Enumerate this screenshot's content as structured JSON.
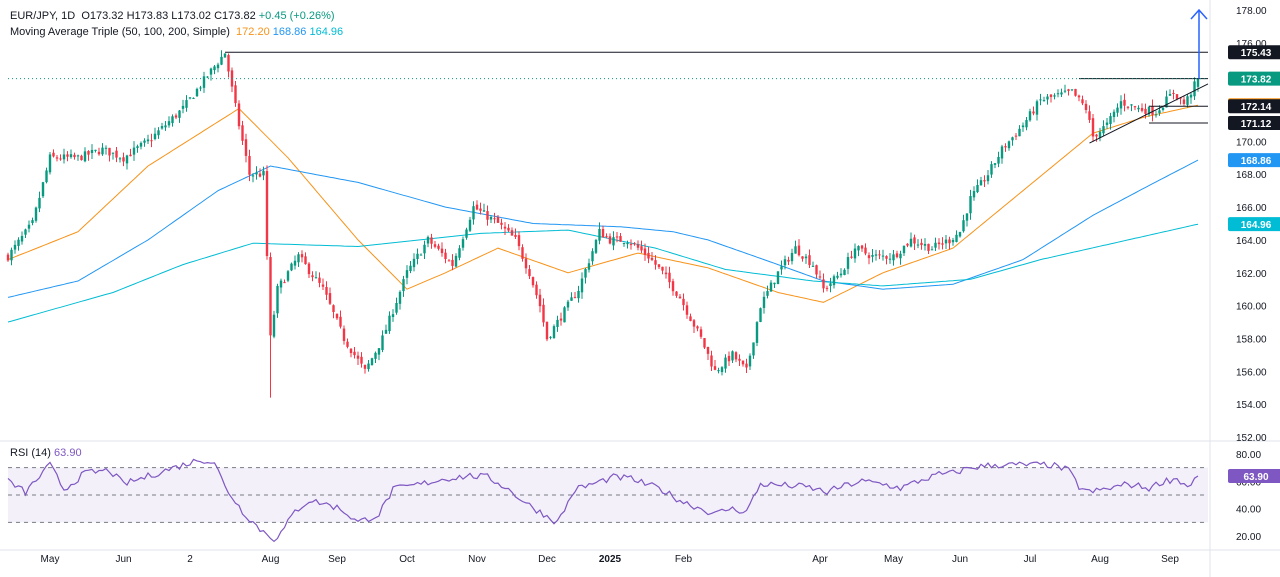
{
  "header": {
    "symbol_line": "EUR/JPY, 1D",
    "open": "O173.32",
    "high": "H173.83",
    "low": "L173.02",
    "close": "C173.82",
    "change": "+0.45 (+0.26%)",
    "ma_title": "Moving Average Triple (50, 100, 200, Simple)",
    "ma50_value": "172.20",
    "ma100_value": "168.86",
    "ma200_value": "164.96"
  },
  "rsi_header": {
    "label": "RSI (14)",
    "value": "63.90"
  },
  "colors": {
    "up": "#089981",
    "down": "#f23645",
    "ma50": "#f7931a",
    "ma100": "#2196f3",
    "ma200": "#00bcd4",
    "rsi": "#7e57c2",
    "arrow": "#2962ff",
    "close_badge": "#089981",
    "ma50_badge": "#f7931a",
    "ma100_badge": "#2196f3",
    "ma200_badge": "#00bcd4",
    "black_badge": "#131722"
  },
  "chart_data": {
    "type": "candlestick",
    "title": "EUR/JPY, 1D",
    "price_axis": {
      "range": [
        152,
        178
      ],
      "ticks": [
        152,
        154,
        156,
        158,
        160,
        162,
        164,
        166,
        168,
        170,
        172,
        174,
        176,
        178
      ]
    },
    "rsi_axis": {
      "range": [
        12,
        88
      ],
      "ticks": [
        20,
        40,
        60,
        80
      ],
      "levels": [
        70,
        50,
        30
      ]
    },
    "time_axis": {
      "labels": [
        "May",
        "Jun",
        "2",
        "Aug",
        "Sep",
        "Oct",
        "Nov",
        "Dec",
        "2025",
        "Feb",
        "Apr",
        "May",
        "Jun",
        "Jul",
        "Aug",
        "Sep"
      ],
      "positions": [
        12,
        33,
        52,
        75,
        94,
        114,
        134,
        154,
        172,
        193,
        232,
        253,
        272,
        292,
        312,
        332
      ]
    },
    "anchors": [
      [
        0,
        163
      ],
      [
        7,
        165
      ],
      [
        12,
        169
      ],
      [
        20,
        169
      ],
      [
        27,
        169.5
      ],
      [
        33,
        169
      ],
      [
        40,
        170
      ],
      [
        50,
        172
      ],
      [
        57,
        174
      ],
      [
        62,
        175.4
      ],
      [
        66,
        171
      ],
      [
        69,
        168
      ],
      [
        73,
        168
      ],
      [
        75,
        158
      ],
      [
        77,
        161
      ],
      [
        83,
        163
      ],
      [
        90,
        161
      ],
      [
        96,
        158
      ],
      [
        102,
        156
      ],
      [
        107,
        158
      ],
      [
        114,
        162
      ],
      [
        120,
        164
      ],
      [
        127,
        162.5
      ],
      [
        133,
        166
      ],
      [
        140,
        165
      ],
      [
        145,
        164
      ],
      [
        149,
        162
      ],
      [
        152,
        160
      ],
      [
        154,
        158
      ],
      [
        157,
        159
      ],
      [
        163,
        161
      ],
      [
        169,
        164.5
      ],
      [
        172,
        164
      ],
      [
        177,
        164
      ],
      [
        183,
        163
      ],
      [
        187,
        162
      ],
      [
        192,
        160.5
      ],
      [
        198,
        158
      ],
      [
        202,
        156
      ],
      [
        207,
        157
      ],
      [
        211,
        156
      ],
      [
        215,
        160
      ],
      [
        220,
        162
      ],
      [
        225,
        163.5
      ],
      [
        230,
        162.5
      ],
      [
        233,
        161
      ],
      [
        238,
        162
      ],
      [
        242,
        163.5
      ],
      [
        247,
        163
      ],
      [
        253,
        163
      ],
      [
        258,
        164
      ],
      [
        264,
        163.5
      ],
      [
        269,
        164
      ],
      [
        272,
        164.5
      ],
      [
        275,
        166.5
      ],
      [
        280,
        168
      ],
      [
        284,
        169.5
      ],
      [
        290,
        171
      ],
      [
        295,
        172.5
      ],
      [
        304,
        173
      ],
      [
        308,
        172
      ],
      [
        310,
        170.3
      ],
      [
        314,
        171
      ],
      [
        318,
        172.4
      ],
      [
        323,
        172
      ],
      [
        328,
        171.8
      ],
      [
        333,
        173
      ],
      [
        336,
        172.3
      ],
      [
        337,
        172.6
      ],
      [
        340,
        173.82
      ]
    ],
    "moving_averages": [
      {
        "name": "MA 50",
        "value": 172.2,
        "anchors": [
          [
            0,
            162.8
          ],
          [
            20,
            164.5
          ],
          [
            40,
            168.5
          ],
          [
            66,
            172
          ],
          [
            80,
            169
          ],
          [
            100,
            164
          ],
          [
            114,
            161
          ],
          [
            125,
            162
          ],
          [
            140,
            163.5
          ],
          [
            160,
            162
          ],
          [
            180,
            163.2
          ],
          [
            200,
            162.3
          ],
          [
            220,
            160.8
          ],
          [
            233,
            160.2
          ],
          [
            250,
            162
          ],
          [
            270,
            163.5
          ],
          [
            290,
            167
          ],
          [
            310,
            170.5
          ],
          [
            325,
            171.5
          ],
          [
            340,
            172.2
          ]
        ]
      },
      {
        "name": "MA 100",
        "value": 168.86,
        "anchors": [
          [
            0,
            160.5
          ],
          [
            20,
            161.5
          ],
          [
            40,
            164
          ],
          [
            60,
            167
          ],
          [
            75,
            168.5
          ],
          [
            100,
            167.5
          ],
          [
            125,
            166
          ],
          [
            150,
            165
          ],
          [
            175,
            164.8
          ],
          [
            190,
            164.5
          ],
          [
            200,
            164
          ],
          [
            220,
            162.5
          ],
          [
            233,
            161.5
          ],
          [
            250,
            161
          ],
          [
            270,
            161.3
          ],
          [
            290,
            162.8
          ],
          [
            310,
            165.5
          ],
          [
            325,
            167.2
          ],
          [
            340,
            168.86
          ]
        ]
      },
      {
        "name": "MA 200",
        "value": 164.96,
        "anchors": [
          [
            0,
            159
          ],
          [
            30,
            160.8
          ],
          [
            50,
            162.5
          ],
          [
            70,
            163.8
          ],
          [
            100,
            163.6
          ],
          [
            135,
            164.4
          ],
          [
            160,
            164.6
          ],
          [
            185,
            163.5
          ],
          [
            205,
            162.2
          ],
          [
            230,
            161.5
          ],
          [
            250,
            161.2
          ],
          [
            275,
            161.6
          ],
          [
            295,
            162.8
          ],
          [
            320,
            164
          ],
          [
            340,
            164.96
          ]
        ]
      }
    ],
    "rsi": {
      "name": "RSI (14)",
      "value": 63.9,
      "anchors": [
        [
          0,
          60
        ],
        [
          5,
          52
        ],
        [
          12,
          72
        ],
        [
          16,
          54
        ],
        [
          22,
          66
        ],
        [
          29,
          68
        ],
        [
          33,
          58
        ],
        [
          38,
          62
        ],
        [
          45,
          68
        ],
        [
          50,
          72
        ],
        [
          55,
          76
        ],
        [
          59,
          74
        ],
        [
          62,
          56
        ],
        [
          67,
          38
        ],
        [
          72,
          25
        ],
        [
          76,
          18
        ],
        [
          78,
          22
        ],
        [
          82,
          38
        ],
        [
          86,
          46
        ],
        [
          90,
          44
        ],
        [
          95,
          40
        ],
        [
          100,
          30
        ],
        [
          106,
          36
        ],
        [
          110,
          54
        ],
        [
          118,
          58
        ],
        [
          125,
          62
        ],
        [
          132,
          64
        ],
        [
          137,
          63
        ],
        [
          142,
          56
        ],
        [
          148,
          44
        ],
        [
          153,
          36
        ],
        [
          157,
          30
        ],
        [
          162,
          54
        ],
        [
          167,
          58
        ],
        [
          173,
          63
        ],
        [
          178,
          62
        ],
        [
          182,
          58
        ],
        [
          186,
          55
        ],
        [
          192,
          46
        ],
        [
          198,
          40
        ],
        [
          202,
          36
        ],
        [
          206,
          40
        ],
        [
          211,
          38
        ],
        [
          215,
          58
        ],
        [
          222,
          57
        ],
        [
          228,
          56
        ],
        [
          234,
          52
        ],
        [
          238,
          56
        ],
        [
          244,
          60
        ],
        [
          250,
          58
        ],
        [
          255,
          55
        ],
        [
          260,
          60
        ],
        [
          266,
          65
        ],
        [
          270,
          66
        ],
        [
          275,
          70
        ],
        [
          282,
          72
        ],
        [
          290,
          72
        ],
        [
          298,
          72
        ],
        [
          303,
          68
        ],
        [
          306,
          56
        ],
        [
          309,
          52
        ],
        [
          315,
          55
        ],
        [
          320,
          58
        ],
        [
          326,
          55
        ],
        [
          330,
          60
        ],
        [
          334,
          62
        ],
        [
          337,
          56
        ],
        [
          340,
          63.9
        ]
      ]
    },
    "trendlines": [
      {
        "name": "all-time-high-line",
        "from": [
          62,
          175.43
        ],
        "to": [
          340,
          175.43
        ],
        "label": "175.43"
      },
      {
        "name": "pattern-top-line",
        "from": [
          306,
          173.82
        ],
        "to": [
          340,
          173.82
        ]
      },
      {
        "name": "pattern-lower-trendline",
        "from": [
          309,
          169.9
        ],
        "to": [
          342,
          173.5
        ]
      },
      {
        "name": "support-172-line",
        "from": [
          326,
          172.14
        ],
        "to": [
          340,
          172.14
        ],
        "label": "172.14"
      },
      {
        "name": "support-171-line",
        "from": [
          326,
          171.12
        ],
        "to": [
          340,
          171.12
        ],
        "label": "171.12"
      }
    ],
    "breakout_arrow": {
      "from": 173.82,
      "to": 178.0
    },
    "current_price": {
      "value": "173.82",
      "dotted_line": true
    },
    "price_badges": [
      {
        "name": "badge-175",
        "label": "175.43",
        "value": 175.43,
        "color": "#131722"
      },
      {
        "name": "badge-close",
        "label": "173.82",
        "value": 173.82,
        "color": "#089981"
      },
      {
        "name": "badge-ma50",
        "label": "172.20",
        "value": 172.2,
        "color": "#f7931a"
      },
      {
        "name": "badge-172",
        "label": "172.14",
        "value": 172.14,
        "color": "#131722"
      },
      {
        "name": "badge-171",
        "label": "171.12",
        "value": 171.12,
        "color": "#131722"
      },
      {
        "name": "badge-ma100",
        "label": "168.86",
        "value": 168.86,
        "color": "#2196f3"
      },
      {
        "name": "badge-ma200",
        "label": "164.96",
        "value": 164.96,
        "color": "#00bcd4"
      }
    ],
    "rsi_badge": {
      "label": "63.90",
      "value": 63.9,
      "color": "#7e57c2"
    }
  }
}
